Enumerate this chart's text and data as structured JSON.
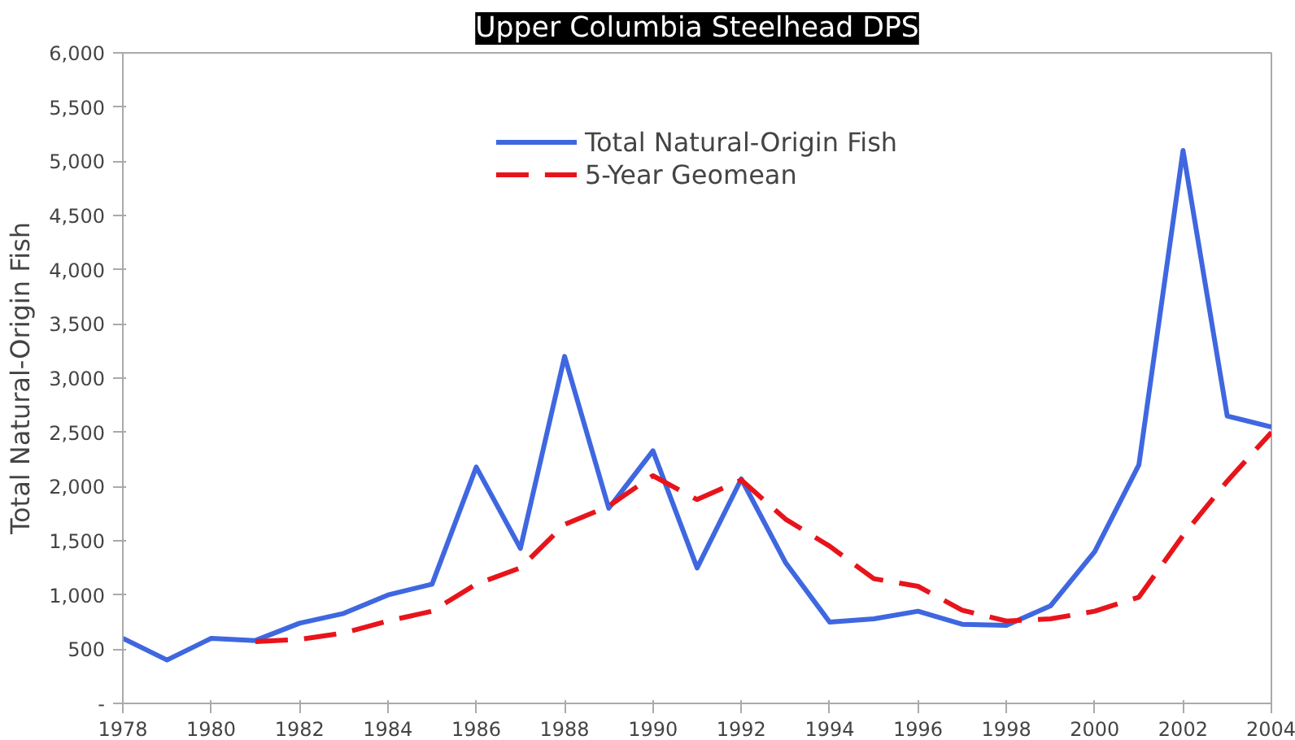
{
  "chart_data": {
    "type": "line",
    "title": "Upper Columbia Steelhead DPS",
    "ylabel": "Total Natural-Origin Fish",
    "xlim": [
      1978,
      2004
    ],
    "xticks": [
      1978,
      1980,
      1982,
      1984,
      1986,
      1988,
      1990,
      1992,
      1994,
      1996,
      1998,
      2000,
      2002,
      2004
    ],
    "ylim": [
      0,
      6000
    ],
    "yticks": [
      {
        "value": 0,
        "label": "-"
      },
      {
        "value": 500,
        "label": "500"
      },
      {
        "value": 1000,
        "label": "1,000"
      },
      {
        "value": 1500,
        "label": "1,500"
      },
      {
        "value": 2000,
        "label": "2,000"
      },
      {
        "value": 2500,
        "label": "2,500"
      },
      {
        "value": 3000,
        "label": "3,000"
      },
      {
        "value": 3500,
        "label": "3,500"
      },
      {
        "value": 4000,
        "label": "4,000"
      },
      {
        "value": 4500,
        "label": "4,500"
      },
      {
        "value": 5000,
        "label": "5,000"
      },
      {
        "value": 5500,
        "label": "5,500"
      },
      {
        "value": 6000,
        "label": "6,000"
      }
    ],
    "grid": false,
    "legend": "top",
    "marker": "none",
    "series": [
      {
        "name": "Total Natural-Origin Fish",
        "color": "#3f67e0",
        "line_style": "solid",
        "x": [
          1978,
          1979,
          1980,
          1981,
          1982,
          1983,
          1984,
          1985,
          1986,
          1987,
          1988,
          1989,
          1990,
          1991,
          1992,
          1993,
          1994,
          1995,
          1996,
          1997,
          1998,
          1999,
          2000,
          2001,
          2002,
          2003,
          2004
        ],
        "values": [
          600,
          400,
          600,
          580,
          740,
          830,
          1000,
          1100,
          2180,
          1430,
          3200,
          1800,
          2330,
          1250,
          2070,
          1300,
          750,
          780,
          850,
          730,
          720,
          900,
          1400,
          2200,
          5100,
          2650,
          2550
        ]
      },
      {
        "name": "5-Year Geomean",
        "color": "#e8141b",
        "line_style": "dashed",
        "x": [
          1981,
          1982,
          1983,
          1984,
          1985,
          1986,
          1987,
          1988,
          1989,
          1990,
          1991,
          1992,
          1993,
          1994,
          1995,
          1996,
          1997,
          1998,
          1999,
          2000,
          2001,
          2002,
          2003,
          2004
        ],
        "values": [
          570,
          590,
          650,
          760,
          850,
          1100,
          1250,
          1650,
          1820,
          2100,
          1880,
          2060,
          1700,
          1450,
          1150,
          1080,
          860,
          760,
          780,
          850,
          980,
          1550,
          2050,
          2500
        ]
      }
    ]
  }
}
